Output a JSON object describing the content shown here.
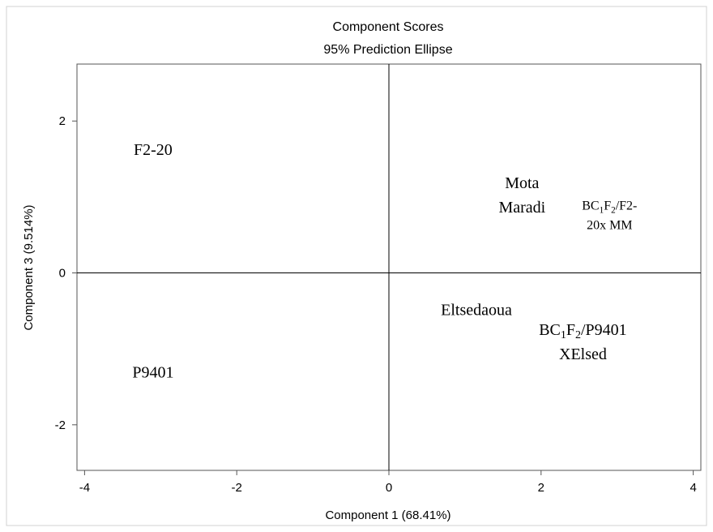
{
  "chart_data": {
    "type": "scatter",
    "title": "Component Scores",
    "subtitle": "95% Prediction Ellipse",
    "xlabel": "Component 1 (68.41%)",
    "ylabel": "Component 3 (9.514%)",
    "xlim": [
      -4.1,
      4.1
    ],
    "ylim": [
      -2.6,
      2.75
    ],
    "xticks": [
      {
        "value": -4,
        "label": "-4"
      },
      {
        "value": -2,
        "label": "-2"
      },
      {
        "value": 0,
        "label": "0"
      },
      {
        "value": 2,
        "label": "2"
      },
      {
        "value": 4,
        "label": "4"
      }
    ],
    "yticks": [
      {
        "value": 2,
        "label": "2"
      },
      {
        "value": 0,
        "label": "0"
      },
      {
        "value": -2,
        "label": "-2"
      }
    ],
    "reference_lines": {
      "x": 0,
      "y": 0
    },
    "points": [
      {
        "label": "F2-20",
        "x": -3.1,
        "y": 1.63
      },
      {
        "label": "Mota Maradi",
        "x": 1.75,
        "y": 1.03
      },
      {
        "label": "BC1F2/F2-20x MM",
        "x": 2.9,
        "y": 0.78
      },
      {
        "label": "Eltsedaoua",
        "x": 1.15,
        "y": -0.48
      },
      {
        "label": "BC1F2/P9401 XElsed",
        "x": 2.55,
        "y": -0.9
      },
      {
        "label": "P9401",
        "x": -3.1,
        "y": -1.3
      }
    ],
    "grid": false
  }
}
